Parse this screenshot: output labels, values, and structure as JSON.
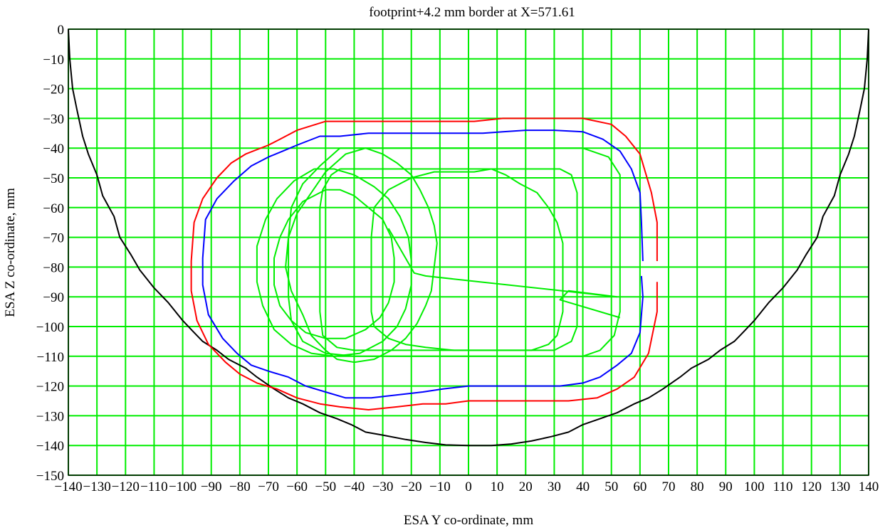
{
  "chart_data": {
    "type": "line",
    "title": "footprint+4.2 mm border at X=571.61",
    "xlabel": "ESA Y co-ordinate, mm",
    "ylabel": "ESA Z co-ordinate, mm",
    "xlim": [
      -140,
      140
    ],
    "ylim": [
      -150,
      0
    ],
    "grid": true,
    "grid_color": "#00ee00",
    "x_ticks": [
      -140,
      -130,
      -120,
      -110,
      -100,
      -90,
      -80,
      -70,
      -60,
      -50,
      -40,
      -30,
      -20,
      -10,
      0,
      10,
      20,
      30,
      40,
      50,
      60,
      70,
      80,
      90,
      100,
      110,
      120,
      130,
      140
    ],
    "y_ticks": [
      0,
      -10,
      -20,
      -30,
      -40,
      -50,
      -60,
      -70,
      -80,
      -90,
      -100,
      -110,
      -120,
      -130,
      -140,
      -150
    ],
    "series": [
      {
        "color": "#000000",
        "points": [
          [
            -140,
            0
          ],
          [
            -139.5,
            -10
          ],
          [
            -138.5,
            -20
          ],
          [
            -137,
            -27
          ],
          [
            -135,
            -36
          ],
          [
            -133,
            -42
          ],
          [
            -130,
            -49
          ],
          [
            -128,
            -56
          ],
          [
            -124,
            -63
          ],
          [
            -122,
            -70
          ],
          [
            -118,
            -76
          ],
          [
            -115,
            -81
          ],
          [
            -110,
            -87
          ],
          [
            -105,
            -92
          ],
          [
            -100,
            -98
          ],
          [
            -96,
            -102
          ],
          [
            -93,
            -105
          ],
          [
            -88,
            -108
          ],
          [
            -84,
            -111
          ],
          [
            -78,
            -114
          ],
          [
            -74,
            -117
          ],
          [
            -68,
            -121
          ],
          [
            -63,
            -124
          ],
          [
            -58,
            -126
          ],
          [
            -52,
            -129
          ],
          [
            -46,
            -131
          ],
          [
            -41,
            -133
          ],
          [
            -36,
            -135.5
          ],
          [
            -30,
            -136.5
          ],
          [
            -22,
            -138
          ],
          [
            -15,
            -139
          ],
          [
            -8,
            -139.8
          ],
          [
            0,
            -140
          ],
          [
            8,
            -140
          ],
          [
            15,
            -139.5
          ],
          [
            22,
            -138.5
          ],
          [
            29,
            -137
          ],
          [
            35,
            -135.5
          ],
          [
            40,
            -133
          ],
          [
            46,
            -131
          ],
          [
            52,
            -129
          ],
          [
            58,
            -126
          ],
          [
            63,
            -124
          ],
          [
            68,
            -121
          ],
          [
            74,
            -117
          ],
          [
            78,
            -114
          ],
          [
            84,
            -111
          ],
          [
            88,
            -108
          ],
          [
            93,
            -105
          ],
          [
            96,
            -102
          ],
          [
            100,
            -98
          ],
          [
            105,
            -92
          ],
          [
            110,
            -87
          ],
          [
            115,
            -81
          ],
          [
            118,
            -76
          ],
          [
            122,
            -70
          ],
          [
            124,
            -63
          ],
          [
            128,
            -56
          ],
          [
            130,
            -49
          ],
          [
            133,
            -42
          ],
          [
            135,
            -36
          ],
          [
            137,
            -27
          ],
          [
            138.5,
            -20
          ],
          [
            139.5,
            -10
          ],
          [
            140,
            0
          ]
        ]
      },
      {
        "color": "#ff0000",
        "points": [
          [
            66,
            -78
          ],
          [
            66,
            -65
          ],
          [
            64,
            -55
          ],
          [
            60,
            -42
          ],
          [
            55,
            -36
          ],
          [
            50,
            -32
          ],
          [
            40,
            -30
          ],
          [
            30,
            -30
          ],
          [
            20,
            -30
          ],
          [
            12,
            -30
          ],
          [
            2,
            -31
          ],
          [
            -10,
            -31
          ],
          [
            -20,
            -31
          ],
          [
            -30,
            -31
          ],
          [
            -40,
            -31
          ],
          [
            -50,
            -31
          ],
          [
            -55,
            -32.5
          ],
          [
            -60,
            -34
          ],
          [
            -66,
            -37
          ],
          [
            -70,
            -39
          ],
          [
            -78,
            -42
          ],
          [
            -83,
            -45
          ],
          [
            -88,
            -50
          ],
          [
            -93,
            -57
          ],
          [
            -96,
            -65
          ],
          [
            -97,
            -78
          ],
          [
            -97,
            -88
          ],
          [
            -95,
            -98
          ],
          [
            -91,
            -106
          ],
          [
            -85,
            -112
          ],
          [
            -80,
            -116
          ],
          [
            -74,
            -119
          ],
          [
            -67,
            -121
          ],
          [
            -60,
            -124
          ],
          [
            -52,
            -126
          ],
          [
            -45,
            -127
          ],
          [
            -35,
            -128
          ],
          [
            -25,
            -127
          ],
          [
            -16,
            -126
          ],
          [
            -8,
            -126
          ],
          [
            0,
            -125
          ],
          [
            10,
            -125
          ],
          [
            20,
            -125
          ],
          [
            35,
            -125
          ],
          [
            45,
            -124
          ],
          [
            52,
            -121
          ],
          [
            58,
            -117
          ],
          [
            63,
            -109
          ],
          [
            66,
            -95
          ],
          [
            66,
            -85
          ]
        ]
      },
      {
        "color": "#0000ff",
        "points": [
          [
            61,
            -78
          ],
          [
            60.5,
            -65
          ],
          [
            60,
            -55
          ],
          [
            57,
            -47
          ],
          [
            53,
            -41
          ],
          [
            47,
            -37
          ],
          [
            40,
            -34.5
          ],
          [
            30,
            -34
          ],
          [
            20,
            -34
          ],
          [
            12,
            -34.5
          ],
          [
            5,
            -35
          ],
          [
            -5,
            -35
          ],
          [
            -15,
            -35
          ],
          [
            -25,
            -35
          ],
          [
            -35,
            -35
          ],
          [
            -45,
            -36
          ],
          [
            -52,
            -36
          ],
          [
            -60,
            -39
          ],
          [
            -65,
            -41
          ],
          [
            -70,
            -43
          ],
          [
            -76,
            -46
          ],
          [
            -82,
            -51
          ],
          [
            -88,
            -57
          ],
          [
            -92,
            -64
          ],
          [
            -93,
            -77
          ],
          [
            -93,
            -86
          ],
          [
            -91,
            -96
          ],
          [
            -86,
            -104
          ],
          [
            -81,
            -109
          ],
          [
            -76,
            -113
          ],
          [
            -70,
            -115
          ],
          [
            -63,
            -117
          ],
          [
            -57,
            -120
          ],
          [
            -50,
            -122
          ],
          [
            -43,
            -124
          ],
          [
            -34,
            -124
          ],
          [
            -25,
            -123
          ],
          [
            -16,
            -122
          ],
          [
            -9,
            -121
          ],
          [
            0,
            -120
          ],
          [
            10,
            -120
          ],
          [
            20,
            -120
          ],
          [
            32,
            -120
          ],
          [
            40,
            -119
          ],
          [
            46,
            -117
          ],
          [
            52,
            -113
          ],
          [
            57,
            -109
          ],
          [
            60,
            -102
          ],
          [
            61,
            -90
          ],
          [
            60.5,
            -83
          ]
        ]
      },
      {
        "color": "#00ee00",
        "points": [
          [
            -45,
            -40
          ],
          [
            -30,
            -40
          ],
          [
            20,
            -40
          ],
          [
            40,
            -40
          ],
          [
            49,
            -43
          ],
          [
            53,
            -49
          ],
          [
            53,
            -60
          ],
          [
            53,
            -95
          ],
          [
            51,
            -103
          ],
          [
            46,
            -108
          ],
          [
            40,
            -110
          ],
          [
            20,
            -110
          ],
          [
            -20,
            -110
          ],
          [
            -40,
            -110
          ],
          [
            -50,
            -109
          ],
          [
            -58,
            -105
          ],
          [
            -62,
            -98
          ],
          [
            -63,
            -90
          ],
          [
            -63,
            -70
          ],
          [
            -62,
            -60
          ],
          [
            -58,
            -52
          ],
          [
            -52,
            -46
          ],
          [
            -45,
            -40
          ]
        ]
      },
      {
        "color": "#00ee00",
        "points": [
          [
            -45,
            -47
          ],
          [
            20,
            -47
          ],
          [
            32,
            -47
          ],
          [
            36,
            -49
          ],
          [
            38,
            -55
          ],
          [
            38,
            -70
          ],
          [
            38,
            -100
          ],
          [
            36,
            -105
          ],
          [
            30,
            -108
          ],
          [
            0,
            -108
          ],
          [
            -40,
            -108
          ],
          [
            -46,
            -107
          ],
          [
            -51,
            -103
          ],
          [
            -52,
            -95
          ],
          [
            -52,
            -60
          ],
          [
            -51,
            -54
          ],
          [
            -48,
            -49
          ],
          [
            -45,
            -47
          ]
        ]
      },
      {
        "color": "#00ee00",
        "points": [
          [
            -5,
            -48
          ],
          [
            2,
            -48
          ],
          [
            8,
            -47
          ],
          [
            13,
            -49
          ],
          [
            18,
            -52
          ],
          [
            24,
            -55
          ],
          [
            28,
            -60
          ],
          [
            31,
            -65
          ],
          [
            33,
            -72
          ],
          [
            33,
            -80
          ],
          [
            33,
            -95
          ],
          [
            31,
            -103
          ],
          [
            28,
            -106
          ],
          [
            22,
            -108
          ],
          [
            -5,
            -108
          ],
          [
            -15,
            -107
          ],
          [
            -22,
            -106
          ],
          [
            -28,
            -104
          ],
          [
            -33,
            -100
          ],
          [
            -34,
            -95
          ],
          [
            -34,
            -70
          ],
          [
            -33,
            -60
          ],
          [
            -28,
            -54
          ],
          [
            -20,
            -50
          ],
          [
            -12,
            -48
          ],
          [
            -5,
            -48
          ]
        ]
      },
      {
        "color": "#00ee00",
        "points": [
          [
            -36,
            -40
          ],
          [
            -30,
            -42
          ],
          [
            -25,
            -45
          ],
          [
            -20,
            -49
          ],
          [
            -17,
            -54
          ],
          [
            -14,
            -60
          ],
          [
            -12,
            -66
          ],
          [
            -11,
            -72
          ],
          [
            -12,
            -80
          ],
          [
            -13,
            -88
          ],
          [
            -15,
            -93
          ],
          [
            -18,
            -99
          ],
          [
            -22,
            -104
          ],
          [
            -27,
            -108
          ],
          [
            -33,
            -111
          ],
          [
            -40,
            -112
          ],
          [
            -46,
            -111
          ],
          [
            -50,
            -108
          ],
          [
            -55,
            -103
          ],
          [
            -58,
            -96
          ],
          [
            -62,
            -88
          ],
          [
            -64,
            -80
          ],
          [
            -63,
            -70
          ],
          [
            -60,
            -62
          ],
          [
            -55,
            -55
          ],
          [
            -50,
            -48
          ],
          [
            -43,
            -42
          ],
          [
            -36,
            -40
          ]
        ]
      },
      {
        "color": "#00ee00",
        "points": [
          [
            -54,
            -47
          ],
          [
            -47,
            -47
          ],
          [
            -40,
            -49
          ],
          [
            -33,
            -53
          ],
          [
            -28,
            -57
          ],
          [
            -24,
            -63
          ],
          [
            -21,
            -70
          ],
          [
            -20,
            -78
          ],
          [
            -20,
            -86
          ],
          [
            -22,
            -94
          ],
          [
            -25,
            -100
          ],
          [
            -30,
            -105
          ],
          [
            -38,
            -109
          ],
          [
            -47,
            -110
          ],
          [
            -55,
            -109
          ],
          [
            -62,
            -106
          ],
          [
            -68,
            -101
          ],
          [
            -72,
            -93
          ],
          [
            -74,
            -85
          ],
          [
            -74,
            -73
          ],
          [
            -71,
            -64
          ],
          [
            -67,
            -57
          ],
          [
            -61,
            -51
          ],
          [
            -54,
            -47
          ]
        ]
      },
      {
        "color": "#00ee00",
        "points": [
          [
            -50,
            -54
          ],
          [
            -45,
            -54
          ],
          [
            -40,
            -56
          ],
          [
            -35,
            -60
          ],
          [
            -30,
            -64
          ],
          [
            -27,
            -70
          ],
          [
            -26,
            -77
          ],
          [
            -26,
            -85
          ],
          [
            -28,
            -92
          ],
          [
            -31,
            -97
          ],
          [
            -36,
            -101
          ],
          [
            -43,
            -104
          ],
          [
            -50,
            -104
          ],
          [
            -57,
            -102
          ],
          [
            -62,
            -98
          ],
          [
            -66,
            -93
          ],
          [
            -68,
            -86
          ],
          [
            -68,
            -77
          ],
          [
            -66,
            -70
          ],
          [
            -63,
            -64
          ],
          [
            -58,
            -58
          ],
          [
            -50,
            -54
          ]
        ]
      },
      {
        "color": "#00ee00",
        "points": [
          [
            -28,
            -67
          ],
          [
            -19,
            -82
          ],
          [
            -15,
            -83
          ],
          [
            52,
            -90
          ],
          [
            35,
            -88
          ],
          [
            32,
            -91
          ],
          [
            53,
            -97
          ]
        ]
      }
    ]
  }
}
